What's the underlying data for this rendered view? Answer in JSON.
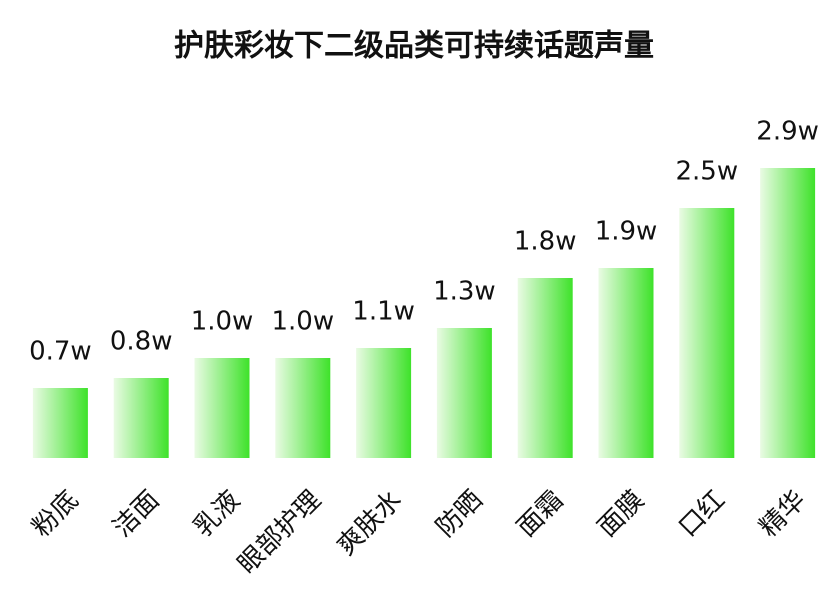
{
  "chart_data": {
    "type": "bar",
    "title": "护肤彩妆下二级品类可持续话题声量",
    "categories": [
      "粉底",
      "洁面",
      "乳液",
      "眼部护理",
      "爽肤水",
      "防晒",
      "面霜",
      "面膜",
      "口红",
      "精华"
    ],
    "values": [
      0.7,
      0.8,
      1.0,
      1.0,
      1.1,
      1.3,
      1.8,
      1.9,
      2.5,
      2.9
    ],
    "value_labels": [
      "0.7w",
      "0.8w",
      "1.0w",
      "1.0w",
      "1.1w",
      "1.3w",
      "1.8w",
      "1.9w",
      "2.5w",
      "2.9w"
    ],
    "color": "#3ee22a"
  }
}
